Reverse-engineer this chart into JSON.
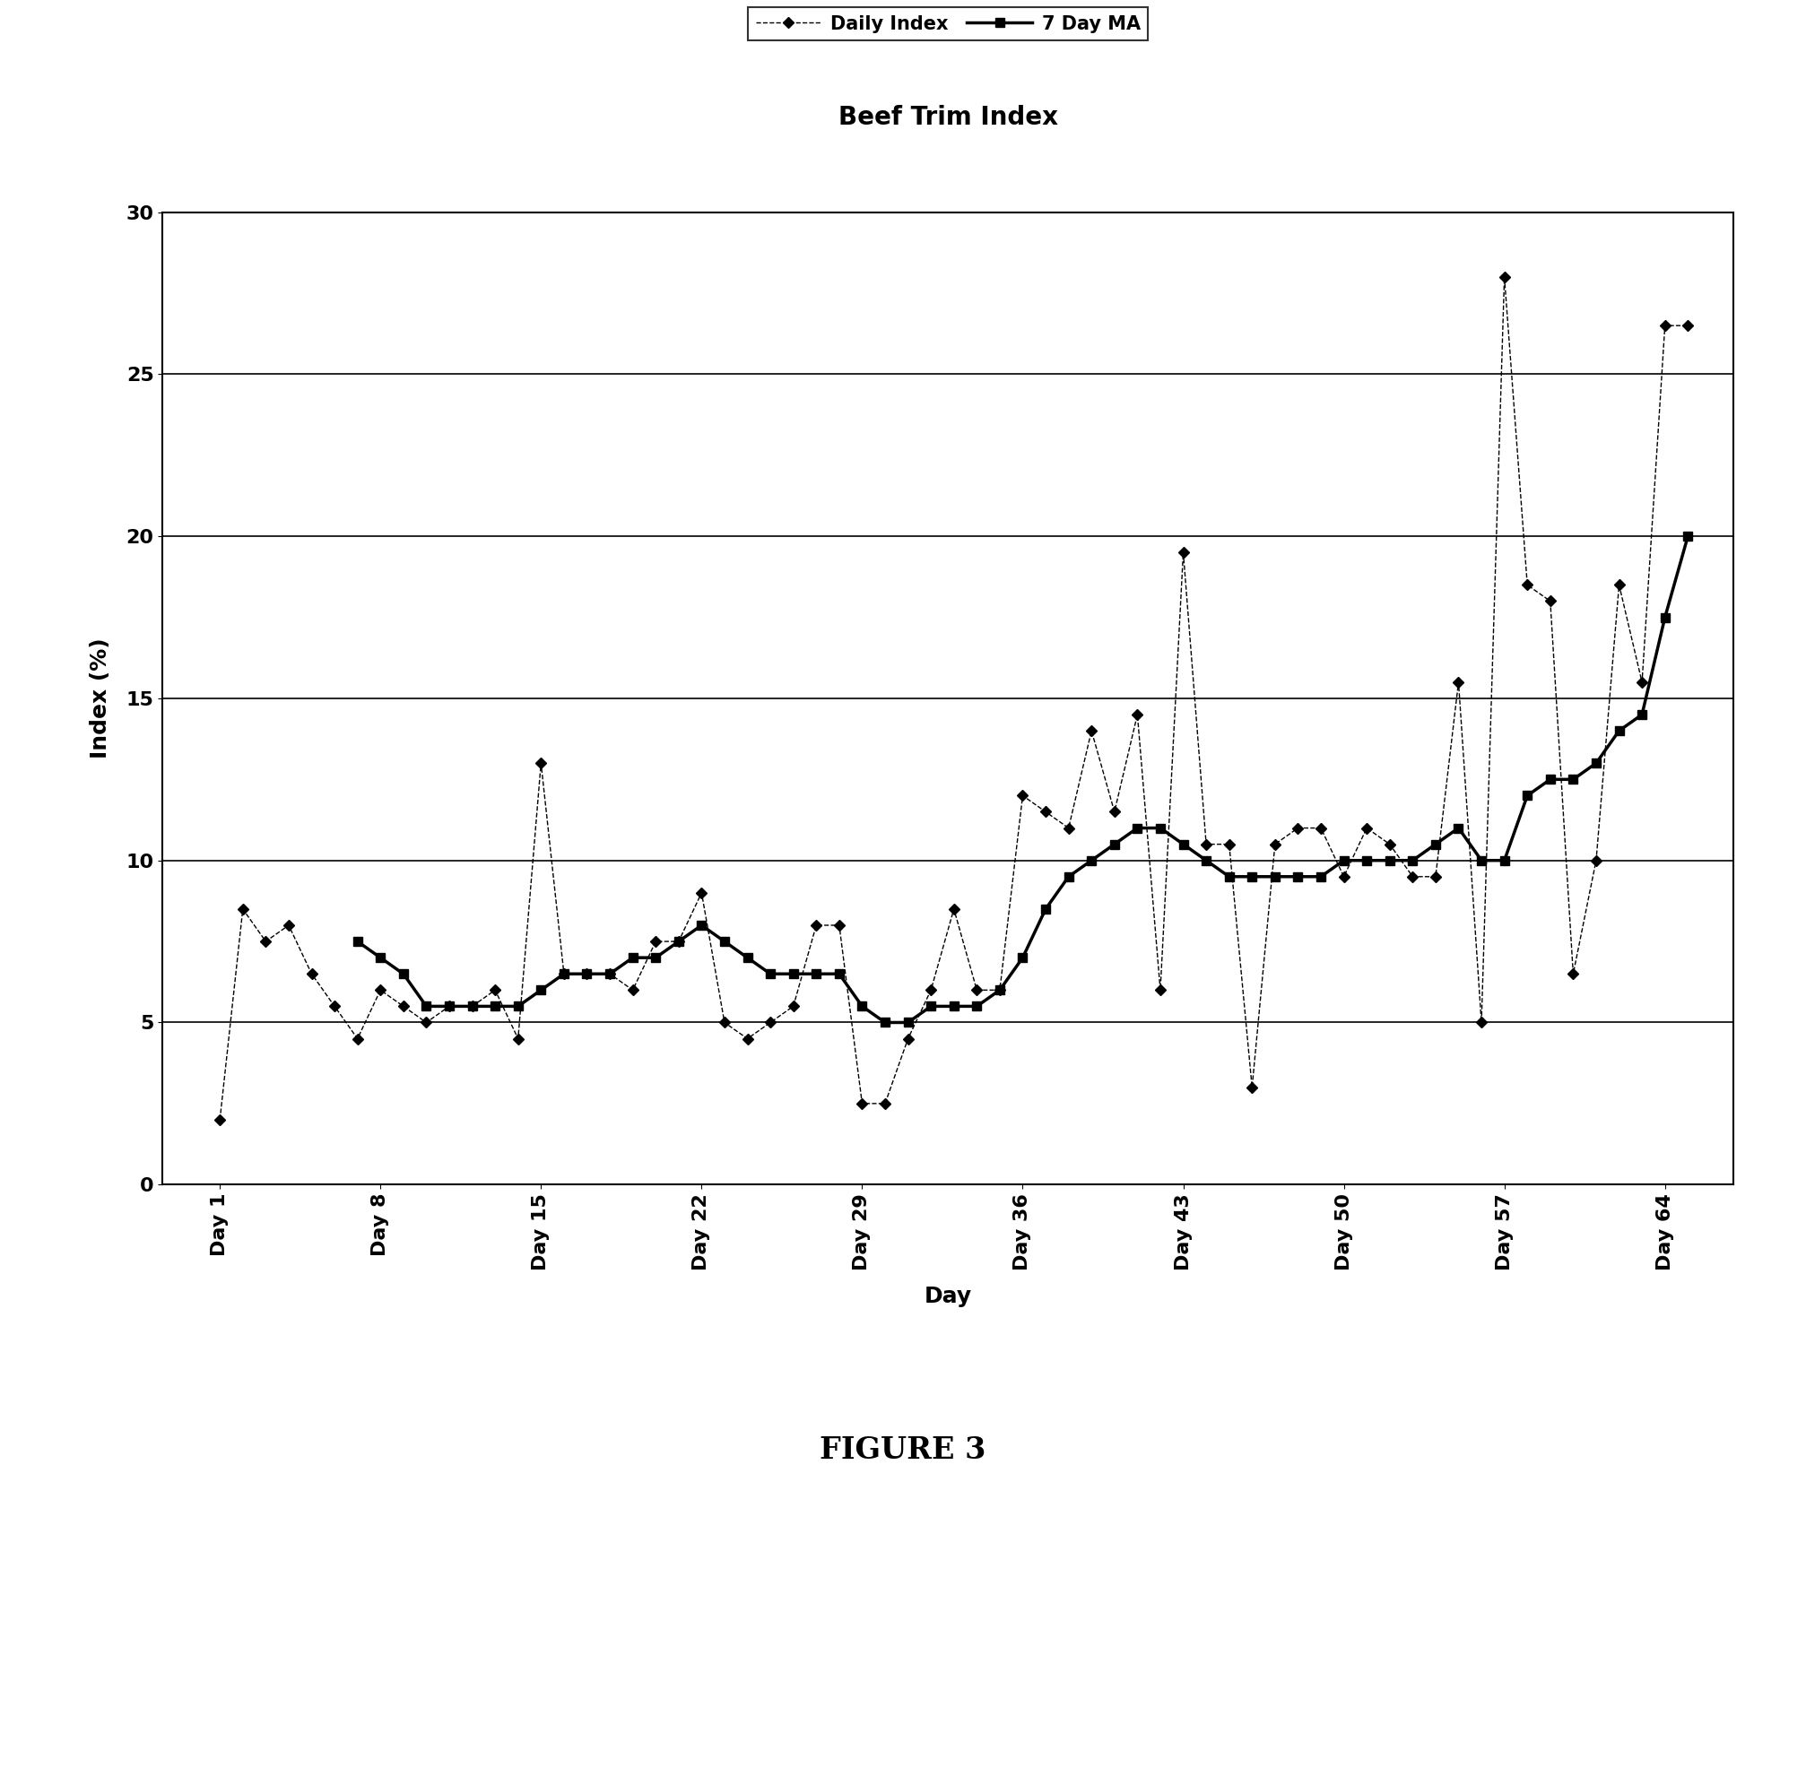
{
  "title": "Beef Trim Index",
  "xlabel": "Day",
  "ylabel": "Index (%)",
  "figure_caption": "FIGURE 3",
  "ylim": [
    0,
    30
  ],
  "yticks": [
    0,
    5,
    10,
    15,
    20,
    25,
    30
  ],
  "xtick_labels": [
    "Day 1",
    "Day 8",
    "Day 15",
    "Day 22",
    "Day 29",
    "Day 36",
    "Day 43",
    "Day 50",
    "Day 57",
    "Day 64"
  ],
  "xtick_positions": [
    1,
    8,
    15,
    22,
    29,
    36,
    43,
    50,
    57,
    64
  ],
  "daily_x": [
    1,
    2,
    3,
    4,
    5,
    6,
    7,
    8,
    9,
    10,
    11,
    12,
    13,
    14,
    15,
    16,
    17,
    18,
    19,
    20,
    21,
    22,
    23,
    24,
    25,
    26,
    27,
    28,
    29,
    30,
    31,
    32,
    33,
    34,
    35,
    36,
    37,
    38,
    39,
    40,
    41,
    42,
    43,
    44,
    45,
    46,
    47,
    48,
    49,
    50,
    51,
    52,
    53,
    54,
    55,
    56,
    57,
    58,
    59,
    60,
    61,
    62,
    63,
    64,
    65
  ],
  "daily_y": [
    2.0,
    8.5,
    7.5,
    8.0,
    6.5,
    5.5,
    4.5,
    6.0,
    5.5,
    5.0,
    5.5,
    5.5,
    6.0,
    4.5,
    13.0,
    6.5,
    6.5,
    6.5,
    6.0,
    7.5,
    7.5,
    9.0,
    5.0,
    4.5,
    5.0,
    5.5,
    8.0,
    8.0,
    2.5,
    2.5,
    4.5,
    6.0,
    8.5,
    6.0,
    6.0,
    12.0,
    11.5,
    11.0,
    14.0,
    11.5,
    14.5,
    6.0,
    19.5,
    10.5,
    10.5,
    3.0,
    10.5,
    11.0,
    11.0,
    9.5,
    11.0,
    10.5,
    9.5,
    9.5,
    15.5,
    5.0,
    28.0,
    18.5,
    18.0,
    6.5,
    10.0,
    18.5,
    15.5,
    26.5,
    26.5
  ],
  "ma7_x": [
    7,
    8,
    9,
    10,
    11,
    12,
    13,
    14,
    15,
    16,
    17,
    18,
    19,
    20,
    21,
    22,
    23,
    24,
    25,
    26,
    27,
    28,
    29,
    30,
    31,
    32,
    33,
    34,
    35,
    36,
    37,
    38,
    39,
    40,
    41,
    42,
    43,
    44,
    45,
    46,
    47,
    48,
    49,
    50,
    51,
    52,
    53,
    54,
    55,
    56,
    57,
    58,
    59,
    60,
    61,
    62,
    63,
    64,
    65
  ],
  "ma7_y": [
    7.5,
    7.0,
    6.5,
    5.5,
    5.5,
    5.5,
    5.5,
    5.5,
    6.0,
    6.5,
    6.5,
    6.5,
    7.0,
    7.0,
    7.5,
    8.0,
    7.5,
    7.0,
    6.5,
    6.5,
    6.5,
    6.5,
    5.5,
    5.0,
    5.0,
    5.5,
    5.5,
    5.5,
    6.0,
    7.0,
    8.5,
    9.5,
    10.0,
    10.5,
    11.0,
    11.0,
    10.5,
    10.0,
    9.5,
    9.5,
    9.5,
    9.5,
    9.5,
    10.0,
    10.0,
    10.0,
    10.0,
    10.5,
    11.0,
    10.0,
    10.0,
    12.0,
    12.5,
    12.5,
    13.0,
    14.0,
    14.5,
    17.5,
    20.0
  ],
  "line_color": "#000000",
  "background_color": "#ffffff",
  "legend_daily_label": "Daily Index",
  "legend_ma_label": "7 Day MA",
  "title_fontsize": 20,
  "label_fontsize": 18,
  "tick_fontsize": 16,
  "legend_fontsize": 15
}
